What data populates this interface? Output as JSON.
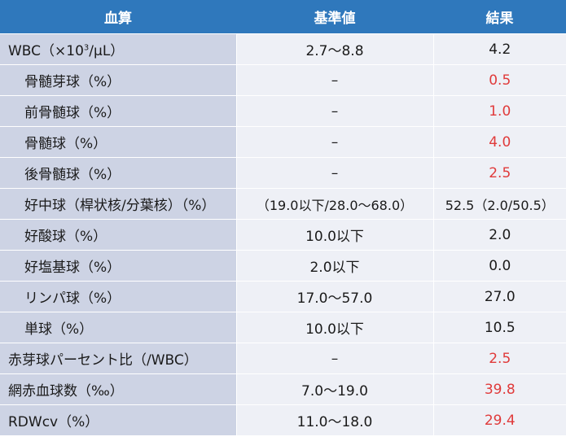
{
  "header": {
    "col1": "血算",
    "col2": "基準値",
    "col3": "結果"
  },
  "wbc": {
    "label_prefix": "WBC（×10",
    "label_sup": "3",
    "label_suffix": "/μL）",
    "reference": "2.7〜8.8",
    "result": "4.2"
  },
  "rows": [
    {
      "label": "骨髄芽球（%）",
      "reference": "–",
      "result": "0.5"
    },
    {
      "label": "前骨髄球（%）",
      "reference": "–",
      "result": "1.0"
    },
    {
      "label": "骨髄球（%）",
      "reference": "–",
      "result": "4.0"
    },
    {
      "label": "後骨髄球（%）",
      "reference": "–",
      "result": "2.5"
    },
    {
      "label": "好中球（桿状核/分葉核）（%）",
      "reference": "（19.0以下/28.0〜68.0）",
      "result": "52.5（2.0/50.5）"
    },
    {
      "label": "好酸球（%）",
      "reference": "10.0以下",
      "result": "2.0"
    },
    {
      "label": "好塩基球（%）",
      "reference": "2.0以下",
      "result": "0.0"
    },
    {
      "label": "リンパ球（%）",
      "reference": "17.0〜57.0",
      "result": "27.0"
    },
    {
      "label": "単球（%）",
      "reference": "10.0以下",
      "result": "10.5"
    },
    {
      "label": "赤芽球パーセント比（/WBC）",
      "reference": "–",
      "result": "2.5"
    },
    {
      "label": "網赤血球数（‰）",
      "reference": "7.0〜19.0",
      "result": "39.8"
    },
    {
      "label": "RDWcv（%）",
      "reference": "11.0〜18.0",
      "result": "29.4"
    }
  ],
  "colors": {
    "header_bg": "#2f78bc",
    "label_bg": "#cdd3e4",
    "cell_bg": "#eef0f6",
    "abnormal_text": "#e03a3a"
  }
}
